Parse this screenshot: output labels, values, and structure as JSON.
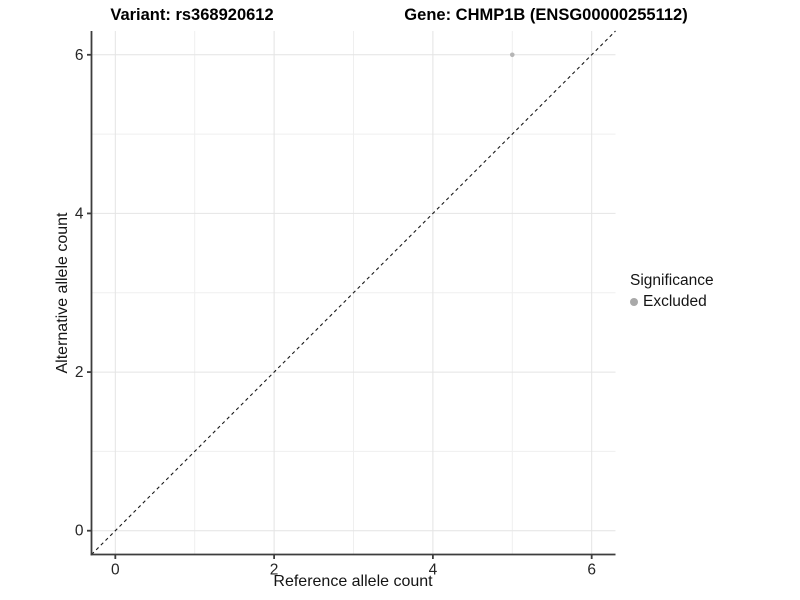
{
  "chart_data": {
    "type": "scatter",
    "title_left": "Variant: rs368920612",
    "title_right": "Gene: CHMP1B (ENSG00000255112)",
    "xlabel": "Reference allele count",
    "ylabel": "Alternative allele count",
    "xlim": [
      -0.3,
      6.3
    ],
    "ylim": [
      -0.3,
      6.3
    ],
    "x_ticks": [
      0,
      2,
      4,
      6
    ],
    "y_ticks": [
      0,
      2,
      4,
      6
    ],
    "minor_gridlines": [
      1,
      3,
      5
    ],
    "grid": true,
    "legend_position": "right",
    "series": [
      {
        "name": "Excluded",
        "points": [
          {
            "x": 5,
            "y": 6
          }
        ],
        "color": "#b5b5b5"
      }
    ],
    "reference_line": {
      "type": "identity",
      "style": "dashed",
      "color": "#1a1a1a"
    },
    "legend": {
      "title": "Significance",
      "items": [
        {
          "label": "Excluded",
          "color": "#a9a9a9"
        }
      ]
    },
    "colors": {
      "major_grid": "#e4e4e4",
      "minor_grid": "#efefef",
      "axis_line": "#3d3d3d",
      "tick_label": "#262626",
      "point": "#b5b5b5"
    }
  }
}
